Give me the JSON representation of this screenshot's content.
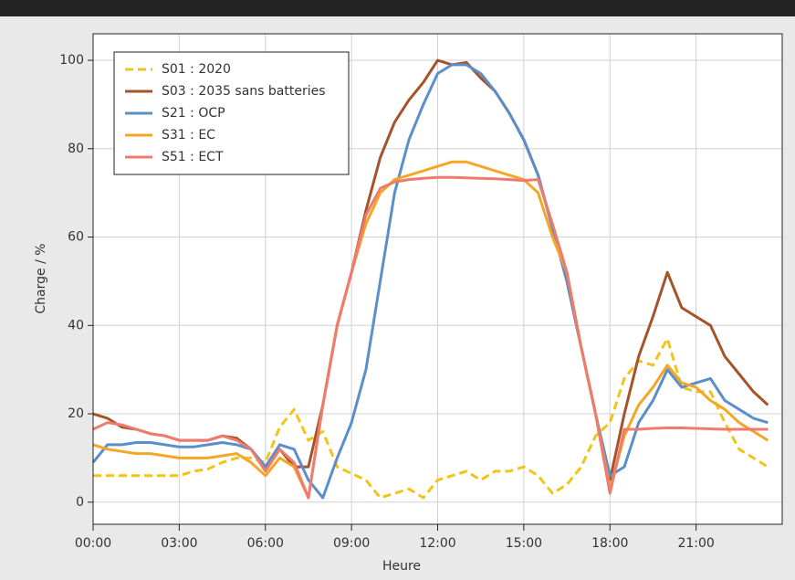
{
  "chart_data": {
    "type": "line",
    "xlabel": "Heure",
    "ylabel": "Charge / %",
    "x": [
      0,
      0.5,
      1,
      1.5,
      2,
      2.5,
      3,
      3.5,
      4,
      4.5,
      5,
      5.5,
      6,
      6.5,
      7,
      7.5,
      8,
      8.5,
      9,
      9.5,
      10,
      10.5,
      11,
      11.5,
      12,
      12.5,
      13,
      13.5,
      14,
      14.5,
      15,
      15.5,
      16,
      16.5,
      17,
      17.5,
      18,
      18.5,
      19,
      19.5,
      20,
      20.5,
      21,
      21.5,
      22,
      22.5,
      23,
      23.5
    ],
    "xlim": [
      0,
      24
    ],
    "xticks": [
      {
        "value": 0,
        "label": "00:00"
      },
      {
        "value": 3,
        "label": "03:00"
      },
      {
        "value": 6,
        "label": "06:00"
      },
      {
        "value": 9,
        "label": "09:00"
      },
      {
        "value": 12,
        "label": "12:00"
      },
      {
        "value": 15,
        "label": "15:00"
      },
      {
        "value": 18,
        "label": "18:00"
      },
      {
        "value": 21,
        "label": "21:00"
      }
    ],
    "ylim": [
      -5,
      106
    ],
    "yticks": [
      0,
      20,
      40,
      60,
      80,
      100
    ],
    "grid": true,
    "legend": "upper left",
    "series": [
      {
        "name": "S01 : 2020",
        "color": "#f2c318",
        "linestyle": "dashed",
        "values": [
          6,
          6,
          6,
          6,
          6,
          6,
          6,
          7,
          7.5,
          9,
          10,
          10,
          9,
          17,
          21,
          14,
          16,
          8,
          6.5,
          5,
          1,
          2,
          3,
          1,
          5,
          6,
          7,
          5,
          7,
          7,
          8,
          6,
          2,
          4,
          8,
          15,
          18,
          28,
          32,
          31,
          37,
          26,
          25,
          25,
          18,
          12,
          10,
          8
        ]
      },
      {
        "name": "S03 : 2035 sans batteries",
        "color": "#a4532a",
        "linestyle": "solid",
        "values": [
          20,
          19,
          17,
          16.5,
          15.5,
          15,
          14,
          14,
          14,
          15,
          14.5,
          12,
          8,
          12,
          8,
          8,
          22,
          40,
          52,
          66,
          78,
          86,
          91,
          95,
          100,
          99,
          99.5,
          96,
          93,
          88,
          82,
          74,
          62,
          50,
          35,
          20,
          5,
          20,
          33,
          42,
          52,
          44,
          42,
          40,
          33,
          29,
          25,
          22
        ]
      },
      {
        "name": "S21 : OCP",
        "color": "#5b8fc9",
        "linestyle": "solid",
        "values": [
          9,
          13,
          13,
          13.5,
          13.5,
          13,
          12.5,
          12.5,
          13,
          13.5,
          13,
          12,
          8,
          13,
          12,
          5,
          1,
          10,
          18,
          30,
          50,
          70,
          82,
          90,
          97,
          99,
          99,
          97,
          93,
          88,
          82,
          74,
          62,
          50,
          35,
          20,
          6,
          8,
          18,
          23,
          30,
          26,
          27,
          28,
          23,
          21,
          19,
          18
        ]
      },
      {
        "name": "S31 : EC",
        "color": "#f5a623",
        "linestyle": "solid",
        "values": [
          13,
          12,
          11.5,
          11,
          11,
          10.5,
          10,
          10,
          10,
          10.5,
          11,
          9,
          6,
          10,
          8,
          1,
          22,
          40,
          52,
          63,
          70,
          73,
          74,
          75,
          76,
          77,
          77,
          76,
          75,
          74,
          73,
          70,
          60,
          52,
          35,
          20,
          3,
          15,
          22,
          26,
          31,
          27,
          26,
          23,
          21,
          18,
          16,
          14
        ]
      },
      {
        "name": "S51 : ECT",
        "color": "#ef7b6e",
        "linestyle": "solid",
        "values": [
          16.5,
          18,
          17.5,
          16.5,
          15.5,
          15,
          14,
          14,
          14,
          15,
          14,
          12,
          7,
          12,
          9,
          1,
          22,
          40,
          52,
          65,
          71,
          72.5,
          73,
          73.3,
          73.5,
          73.5,
          73.4,
          73.3,
          73.2,
          73,
          72.8,
          73,
          63,
          52,
          35,
          20,
          2,
          16.5,
          16.5,
          16.7,
          16.8,
          16.8,
          16.7,
          16.6,
          16.5,
          16.5,
          16.5,
          16.5
        ]
      }
    ]
  }
}
